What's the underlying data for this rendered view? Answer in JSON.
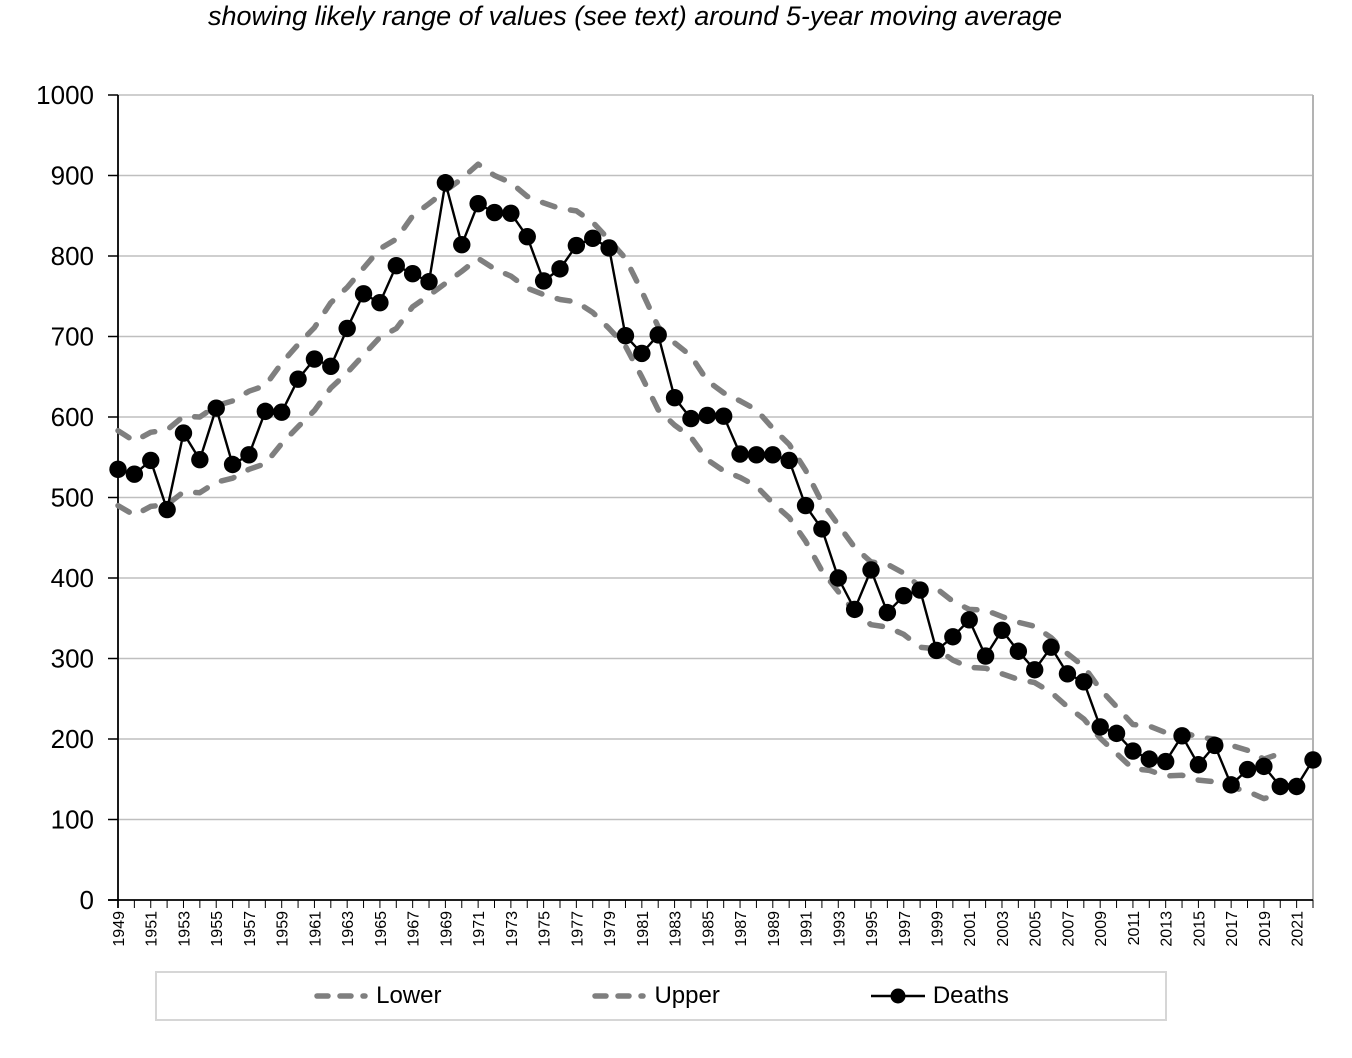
{
  "title": "showing likely range of values (see text) around 5-year moving average",
  "chart_data": {
    "type": "line",
    "title": "showing likely range of values (see text) around 5-year moving average",
    "y_axis": {
      "min": 0,
      "max": 1000,
      "step": 100
    },
    "x_axis": {
      "year_min": 1949,
      "year_max": 2022,
      "tick_every": 1,
      "tick_labels": [
        1949,
        1951,
        1953,
        1955,
        1957,
        1959,
        1961,
        1963,
        1965,
        1967,
        1969,
        1971,
        1973,
        1975,
        1977,
        1979,
        1981,
        1983,
        1985,
        1987,
        1989,
        1991,
        1993,
        1995,
        1997,
        1999,
        2001,
        2003,
        2005,
        2007,
        2009,
        2011,
        2013,
        2015,
        2017,
        2019,
        2021
      ]
    },
    "grid": "horizontal",
    "legend": [
      "Lower",
      "Upper",
      "Deaths"
    ],
    "legend_position": "bottom",
    "colors": {
      "band": "#7f7f7f",
      "deaths": "#000000",
      "gridline": "#bfbfbf",
      "plot_border": "#b3b3b3"
    },
    "series": [
      {
        "name": "Lower",
        "style": "dashed",
        "color": "#7f7f7f",
        "year_start": 1949,
        "values": [
          490,
          478,
          489,
          491,
          507,
          506,
          519,
          524,
          535,
          542,
          567,
          588,
          608,
          636,
          655,
          677,
          699,
          710,
          737,
          751,
          766,
          781,
          797,
          784,
          775,
          760,
          752,
          746,
          743,
          730,
          710,
          688,
          650,
          609,
          590,
          575,
          547,
          533,
          525,
          514,
          493,
          475,
          446,
          409,
          383,
          358,
          342,
          339,
          330,
          314,
          312,
          298,
          289,
          288,
          281,
          274,
          270,
          258,
          240,
          225,
          201,
          182,
          163,
          161,
          154,
          155,
          149,
          147,
          140,
          135,
          126,
          132
        ]
      },
      {
        "name": "Upper",
        "style": "dashed",
        "color": "#7f7f7f",
        "year_start": 1949,
        "values": [
          583,
          570,
          581,
          584,
          601,
          600,
          614,
          620,
          632,
          639,
          667,
          690,
          711,
          742,
          761,
          785,
          809,
          821,
          850,
          865,
          881,
          896,
          914,
          900,
          891,
          874,
          866,
          859,
          856,
          842,
          820,
          797,
          756,
          712,
          692,
          676,
          645,
          630,
          620,
          609,
          586,
          566,
          534,
          494,
          466,
          438,
          420,
          417,
          406,
          389,
          387,
          371,
          361,
          360,
          352,
          345,
          340,
          326,
          306,
          290,
          262,
          240,
          218,
          216,
          208,
          209,
          202,
          200,
          192,
          186,
          175,
          182
        ]
      },
      {
        "name": "Deaths",
        "style": "solid_markers",
        "color": "#000000",
        "year_start": 1949,
        "values": [
          535,
          529,
          546,
          485,
          580,
          547,
          611,
          541,
          553,
          607,
          606,
          647,
          672,
          663,
          710,
          753,
          742,
          788,
          778,
          768,
          891,
          814,
          865,
          854,
          853,
          824,
          769,
          784,
          813,
          822,
          810,
          701,
          679,
          702,
          624,
          598,
          602,
          601,
          554,
          553,
          553,
          546,
          490,
          461,
          400,
          361,
          410,
          357,
          378,
          385,
          310,
          327,
          348,
          303,
          335,
          309,
          286,
          314,
          281,
          271,
          215,
          207,
          185,
          175,
          172,
          204,
          168,
          192,
          143,
          162,
          166,
          141,
          141,
          174
        ]
      }
    ]
  }
}
